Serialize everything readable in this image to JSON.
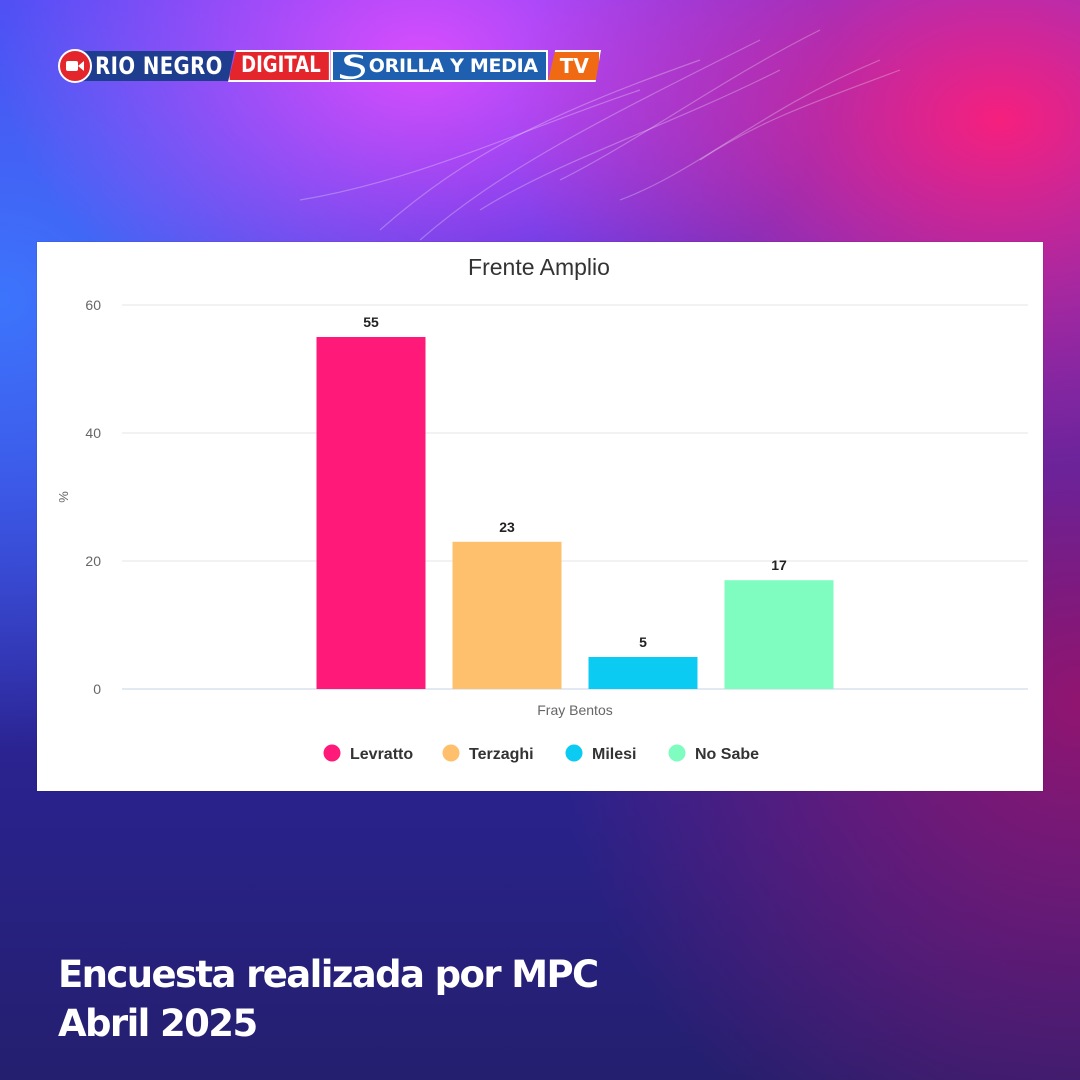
{
  "brand": {
    "rio_negro": "RIO NEGRO",
    "digital": "DIGITAL",
    "orilla_y_media": "ORILLA Y MEDIA",
    "tv": "TV",
    "camera_icon": "video-camera-icon",
    "colors": {
      "red": "#e4252b",
      "navy": "#1f3d8f",
      "blue": "#1f5fb0",
      "orange": "#f06a14"
    }
  },
  "chart_data": {
    "type": "bar",
    "title": "Frente Amplio",
    "xlabel": "",
    "ylabel": "%",
    "categories": [
      "Fray Bentos"
    ],
    "series": [
      {
        "name": "Levratto",
        "values": [
          55
        ],
        "color": "#ff1a7a"
      },
      {
        "name": "Terzaghi",
        "values": [
          23
        ],
        "color": "#ffc06e"
      },
      {
        "name": "Milesi",
        "values": [
          5
        ],
        "color": "#0ccbf2"
      },
      {
        "name": "No Sabe",
        "values": [
          17
        ],
        "color": "#7ffcc0"
      }
    ],
    "ylim": [
      0,
      60
    ],
    "yticks": [
      0,
      20,
      40,
      60
    ],
    "grid": true,
    "data_labels": true,
    "legend_position": "bottom"
  },
  "caption": {
    "line1": "Encuesta realizada por MPC",
    "line2": "Abril 2025"
  }
}
